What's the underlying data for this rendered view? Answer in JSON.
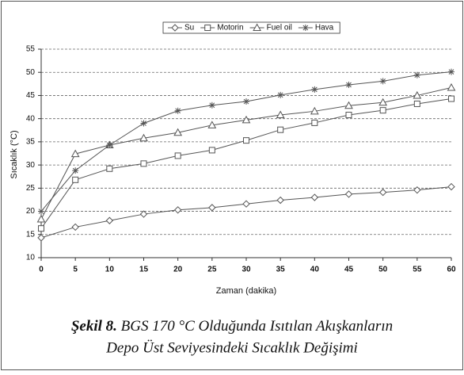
{
  "chart_data": {
    "type": "line",
    "x": [
      0,
      5,
      10,
      15,
      20,
      25,
      30,
      35,
      40,
      45,
      50,
      55,
      60
    ],
    "xlim": [
      0,
      60
    ],
    "xticks": [
      0,
      5,
      10,
      15,
      20,
      25,
      30,
      35,
      40,
      45,
      50,
      55,
      60
    ],
    "ylim": [
      10,
      55
    ],
    "yticks": [
      10,
      15,
      20,
      25,
      30,
      35,
      40,
      45,
      50,
      55
    ],
    "xlabel": "Zaman (dakika)",
    "ylabel": "Sıcaklık (°C)",
    "grid": true,
    "legend": "top",
    "series": [
      {
        "name": "Su",
        "color": "#555555",
        "marker": "diamond",
        "values": [
          14.3,
          16.6,
          18,
          19.4,
          20.3,
          20.8,
          21.6,
          22.4,
          23,
          23.7,
          24.1,
          24.6,
          25.3
        ]
      },
      {
        "name": "Motorin",
        "color": "#555555",
        "marker": "square",
        "values": [
          16.3,
          26.8,
          29.2,
          30.3,
          32,
          33.2,
          35.3,
          37.6,
          39.1,
          40.8,
          41.8,
          43.2,
          44.3
        ]
      },
      {
        "name": "Fuel oil",
        "color": "#555555",
        "marker": "triangle",
        "values": [
          18.3,
          32.4,
          34.3,
          35.8,
          37,
          38.6,
          39.7,
          40.8,
          41.6,
          42.8,
          43.5,
          45,
          46.7
        ]
      },
      {
        "name": "Hava",
        "color": "#555555",
        "marker": "star",
        "values": [
          20,
          28.8,
          34.3,
          39,
          41.7,
          42.9,
          43.7,
          45.1,
          46.3,
          47.3,
          48.1,
          49.4,
          50.1
        ]
      }
    ]
  },
  "caption": {
    "label": "Şekil 8.",
    "line1": "BGS 170 °C Olduğunda Isıtılan Akışkanların",
    "line2": "Depo Üst Seviyesindeki Sıcaklık Değişimi"
  }
}
